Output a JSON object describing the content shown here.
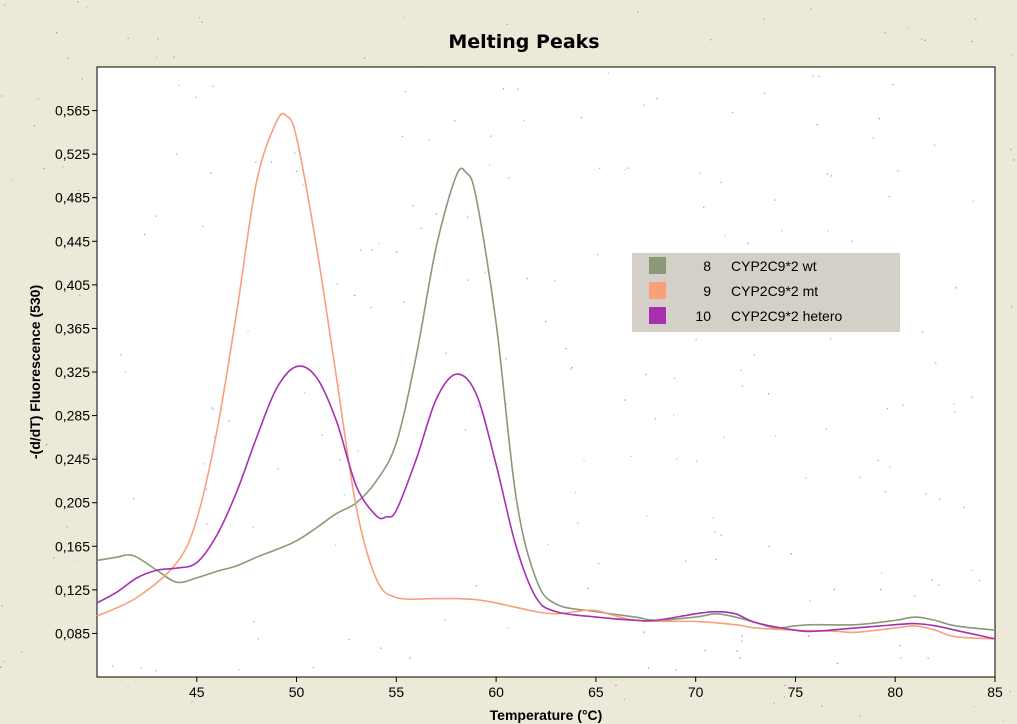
{
  "chart_data": {
    "type": "line",
    "title": "Melting Peaks",
    "xlabel": "Temperature (°C)",
    "ylabel": "-(d/dT) Fluorescence (530)",
    "xlim": [
      40,
      85
    ],
    "ylim": [
      0.045,
      0.605
    ],
    "x_ticks": [
      45,
      50,
      55,
      60,
      65,
      70,
      75,
      80,
      85
    ],
    "y_ticks": [
      "0,085",
      "0,125",
      "0,165",
      "0,205",
      "0,245",
      "0,285",
      "0,325",
      "0,365",
      "0,405",
      "0,445",
      "0,485",
      "0,525",
      "0,565"
    ],
    "y_tick_values": [
      0.085,
      0.125,
      0.165,
      0.205,
      0.245,
      0.285,
      0.325,
      0.365,
      0.405,
      0.445,
      0.485,
      0.525,
      0.565
    ],
    "legend_position": "right",
    "series": [
      {
        "name": "CYP2C9*2 wt",
        "id": "8",
        "color": "#8a9a78",
        "points": [
          [
            40,
            0.152
          ],
          [
            41,
            0.155
          ],
          [
            41.5,
            0.157
          ],
          [
            42,
            0.155
          ],
          [
            43,
            0.143
          ],
          [
            44,
            0.132
          ],
          [
            45,
            0.136
          ],
          [
            46,
            0.142
          ],
          [
            47,
            0.147
          ],
          [
            48,
            0.155
          ],
          [
            49,
            0.162
          ],
          [
            50,
            0.17
          ],
          [
            51,
            0.182
          ],
          [
            52,
            0.195
          ],
          [
            53,
            0.205
          ],
          [
            54,
            0.225
          ],
          [
            55,
            0.26
          ],
          [
            56,
            0.34
          ],
          [
            57,
            0.44
          ],
          [
            58,
            0.505
          ],
          [
            58.5,
            0.508
          ],
          [
            59,
            0.485
          ],
          [
            60,
            0.37
          ],
          [
            61,
            0.21
          ],
          [
            62,
            0.135
          ],
          [
            63,
            0.112
          ],
          [
            65,
            0.105
          ],
          [
            67,
            0.1
          ],
          [
            68,
            0.097
          ],
          [
            70,
            0.1
          ],
          [
            71,
            0.103
          ],
          [
            72,
            0.1
          ],
          [
            73,
            0.095
          ],
          [
            74,
            0.09
          ],
          [
            75,
            0.092
          ],
          [
            76,
            0.093
          ],
          [
            78,
            0.093
          ],
          [
            80,
            0.097
          ],
          [
            81,
            0.1
          ],
          [
            82,
            0.097
          ],
          [
            83,
            0.092
          ],
          [
            85,
            0.088
          ]
        ]
      },
      {
        "name": "CYP2C9*2 mt",
        "id": "9",
        "color": "#f8a07c",
        "points": [
          [
            40,
            0.101
          ],
          [
            42,
            0.118
          ],
          [
            44,
            0.15
          ],
          [
            45,
            0.19
          ],
          [
            46,
            0.27
          ],
          [
            47,
            0.38
          ],
          [
            48,
            0.5
          ],
          [
            49,
            0.555
          ],
          [
            49.5,
            0.56
          ],
          [
            50,
            0.54
          ],
          [
            51,
            0.44
          ],
          [
            52,
            0.32
          ],
          [
            53,
            0.2
          ],
          [
            54,
            0.135
          ],
          [
            55,
            0.118
          ],
          [
            57,
            0.117
          ],
          [
            58,
            0.117
          ],
          [
            59,
            0.116
          ],
          [
            60,
            0.113
          ],
          [
            62,
            0.105
          ],
          [
            63,
            0.103
          ],
          [
            64,
            0.105
          ],
          [
            65,
            0.106
          ],
          [
            67,
            0.097
          ],
          [
            70,
            0.096
          ],
          [
            72,
            0.093
          ],
          [
            73,
            0.09
          ],
          [
            75,
            0.088
          ],
          [
            77,
            0.087
          ],
          [
            78,
            0.086
          ],
          [
            80,
            0.09
          ],
          [
            81,
            0.092
          ],
          [
            82,
            0.088
          ],
          [
            83,
            0.082
          ],
          [
            85,
            0.08
          ]
        ]
      },
      {
        "name": "CYP2C9*2 hetero",
        "id": "10",
        "color": "#a830b0",
        "points": [
          [
            40,
            0.113
          ],
          [
            41,
            0.123
          ],
          [
            42,
            0.136
          ],
          [
            43,
            0.143
          ],
          [
            44,
            0.145
          ],
          [
            45,
            0.15
          ],
          [
            46,
            0.175
          ],
          [
            47,
            0.215
          ],
          [
            48,
            0.265
          ],
          [
            49,
            0.31
          ],
          [
            50,
            0.33
          ],
          [
            51,
            0.32
          ],
          [
            52,
            0.28
          ],
          [
            53,
            0.22
          ],
          [
            54,
            0.193
          ],
          [
            54.5,
            0.192
          ],
          [
            55,
            0.198
          ],
          [
            56,
            0.245
          ],
          [
            57,
            0.3
          ],
          [
            58,
            0.323
          ],
          [
            59,
            0.305
          ],
          [
            60,
            0.24
          ],
          [
            61,
            0.165
          ],
          [
            62,
            0.118
          ],
          [
            63,
            0.105
          ],
          [
            65,
            0.1
          ],
          [
            67,
            0.097
          ],
          [
            68,
            0.097
          ],
          [
            70,
            0.103
          ],
          [
            71,
            0.105
          ],
          [
            72,
            0.103
          ],
          [
            73,
            0.095
          ],
          [
            75,
            0.088
          ],
          [
            76,
            0.087
          ],
          [
            78,
            0.09
          ],
          [
            80,
            0.093
          ],
          [
            81,
            0.094
          ],
          [
            82,
            0.092
          ],
          [
            83,
            0.088
          ],
          [
            85,
            0.08
          ]
        ]
      }
    ]
  }
}
